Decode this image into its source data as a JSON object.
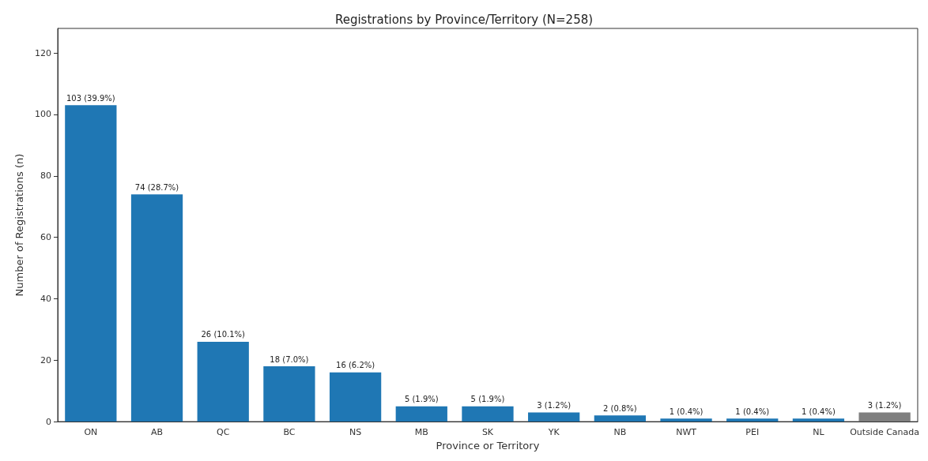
{
  "chart_data": {
    "type": "bar",
    "title": "Registrations by Province/Territory (N=258)",
    "xlabel": "Province or Territory",
    "ylabel": "Number of Registrations (n)",
    "categories": [
      "ON",
      "AB",
      "QC",
      "BC",
      "NS",
      "MB",
      "SK",
      "YK",
      "NB",
      "NWT",
      "PEI",
      "NL",
      "Outside Canada"
    ],
    "values": [
      103,
      74,
      26,
      18,
      16,
      5,
      5,
      3,
      2,
      1,
      1,
      1,
      3
    ],
    "colors": [
      "#1f77b4",
      "#1f77b4",
      "#1f77b4",
      "#1f77b4",
      "#1f77b4",
      "#1f77b4",
      "#1f77b4",
      "#1f77b4",
      "#1f77b4",
      "#1f77b4",
      "#1f77b4",
      "#1f77b4",
      "#7f7f7f"
    ],
    "value_labels": [
      "103 (39.9%)",
      "74 (28.7%)",
      "26 (10.1%)",
      "18 (7.0%)",
      "16 (6.2%)",
      "5 (1.9%)",
      "5 (1.9%)",
      "3 (1.2%)",
      "2 (0.8%)",
      "1 (0.4%)",
      "1 (0.4%)",
      "1 (0.4%)",
      "3 (1.2%)"
    ],
    "ylim": [
      0,
      128
    ],
    "yticks": [
      0,
      20,
      40,
      60,
      80,
      100,
      120
    ]
  }
}
